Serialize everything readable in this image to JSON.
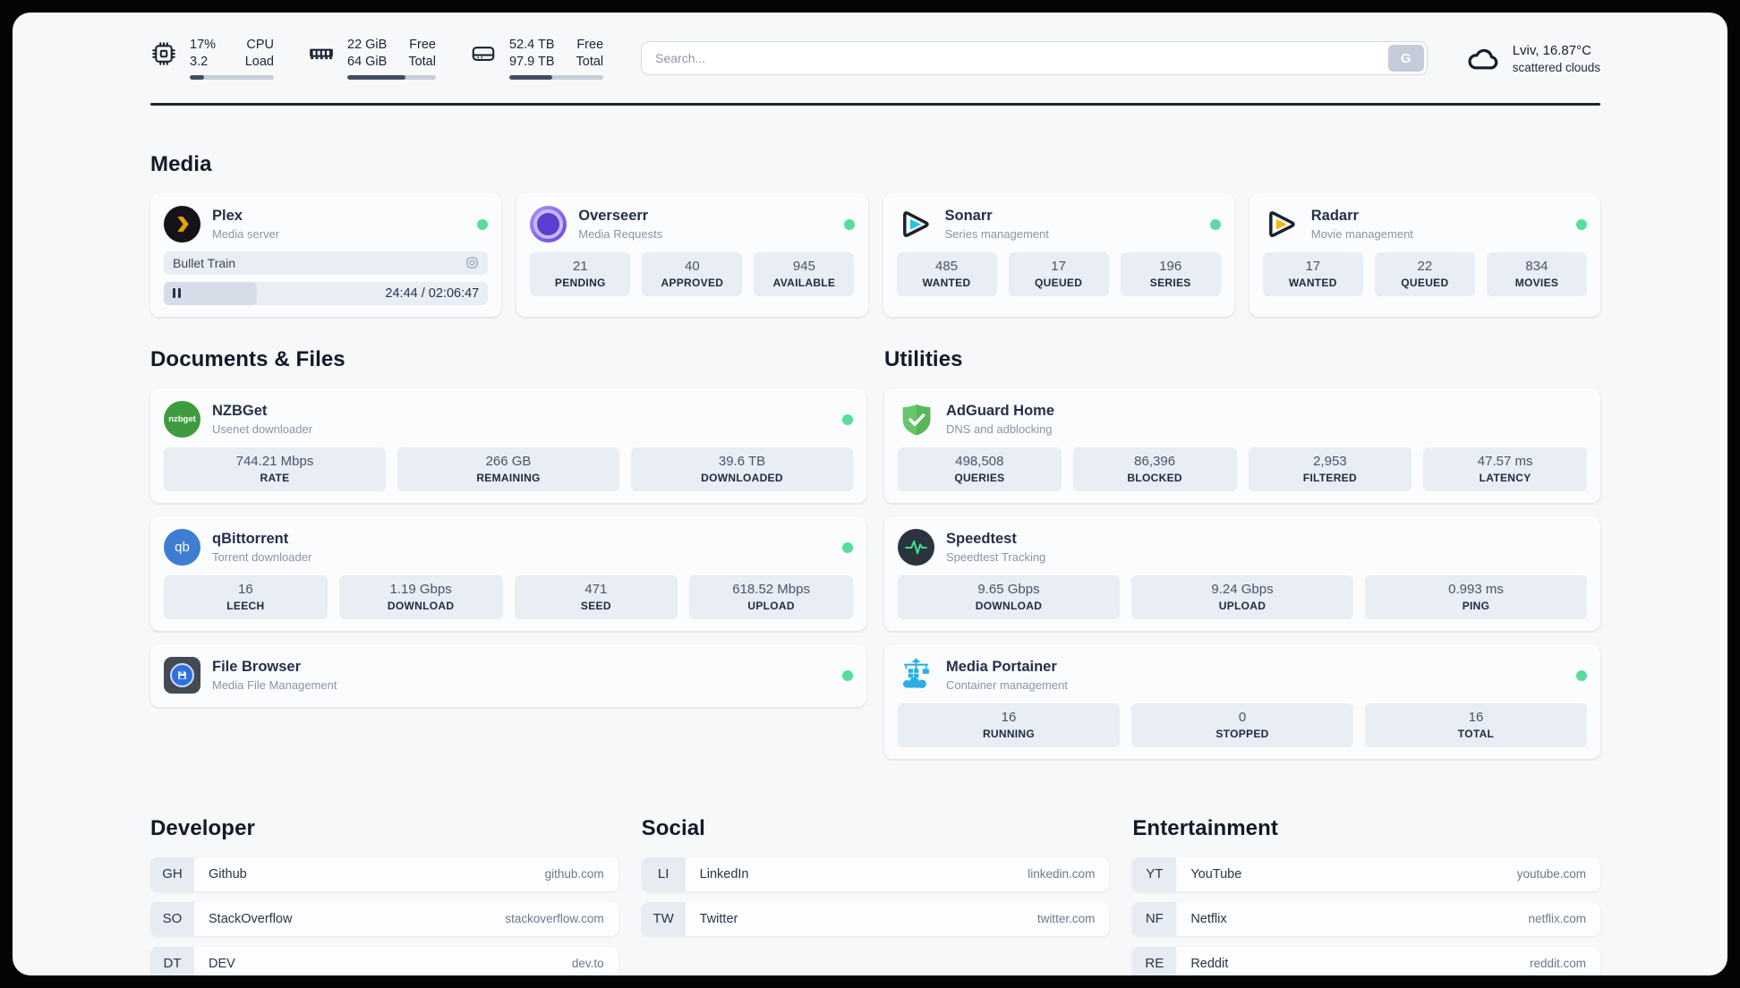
{
  "colors": {
    "online_dot": "#57de9c",
    "accent_dark": "#1d2530",
    "stat_box": "#e9edf4"
  },
  "header": {
    "hardware": [
      {
        "icon": "cpu-icon",
        "value_top": "17%",
        "value_bottom": "3.2",
        "label_top": "CPU",
        "label_bottom": "Load",
        "progress_pct": 17
      },
      {
        "icon": "ram-icon",
        "value_top": "22 GiB",
        "value_bottom": "64 GiB",
        "label_top": "Free",
        "label_bottom": "Total",
        "progress_pct": 66
      },
      {
        "icon": "disk-icon",
        "value_top": "52.4 TB",
        "value_bottom": "97.9 TB",
        "label_top": "Free",
        "label_bottom": "Total",
        "progress_pct": 46
      }
    ],
    "search": {
      "placeholder": "Search...",
      "button_label": "G"
    },
    "weather": {
      "icon": "cloud-icon",
      "location": "Lviv, 16.87°C",
      "condition": "scattered clouds"
    }
  },
  "sections": {
    "media": {
      "title": "Media",
      "apps": [
        {
          "icon": "plex-icon",
          "name": "Plex",
          "desc": "Media server",
          "online": true,
          "player": {
            "title": "Bullet Train",
            "time": "24:44 / 02:06:47"
          }
        },
        {
          "icon": "overseerr-icon",
          "name": "Overseerr",
          "desc": "Media Requests",
          "online": true,
          "stats": [
            {
              "value": "21",
              "label": "PENDING"
            },
            {
              "value": "40",
              "label": "APPROVED"
            },
            {
              "value": "945",
              "label": "AVAILABLE"
            }
          ]
        },
        {
          "icon": "sonarr-icon",
          "name": "Sonarr",
          "desc": "Series management",
          "online": true,
          "stats": [
            {
              "value": "485",
              "label": "WANTED"
            },
            {
              "value": "17",
              "label": "QUEUED"
            },
            {
              "value": "196",
              "label": "SERIES"
            }
          ]
        },
        {
          "icon": "radarr-icon",
          "name": "Radarr",
          "desc": "Movie management",
          "online": true,
          "stats": [
            {
              "value": "17",
              "label": "WANTED"
            },
            {
              "value": "22",
              "label": "QUEUED"
            },
            {
              "value": "834",
              "label": "MOVIES"
            }
          ]
        }
      ]
    },
    "documents": {
      "title": "Documents & Files",
      "apps": [
        {
          "icon": "nzbget-icon",
          "abbr": "nzbget",
          "name": "NZBGet",
          "desc": "Usenet downloader",
          "online": true,
          "stats": [
            {
              "value": "744.21 Mbps",
              "label": "RATE"
            },
            {
              "value": "266 GB",
              "label": "REMAINING"
            },
            {
              "value": "39.6 TB",
              "label": "DOWNLOADED"
            }
          ]
        },
        {
          "icon": "qbittorrent-icon",
          "abbr": "qb",
          "name": "qBittorrent",
          "desc": "Torrent downloader",
          "online": true,
          "stats": [
            {
              "value": "16",
              "label": "LEECH"
            },
            {
              "value": "1.19 Gbps",
              "label": "DOWNLOAD"
            },
            {
              "value": "471",
              "label": "SEED"
            },
            {
              "value": "618.52 Mbps",
              "label": "UPLOAD"
            }
          ]
        },
        {
          "icon": "filebrowser-icon",
          "name": "File Browser",
          "desc": "Media File Management",
          "online": true,
          "stats": []
        }
      ]
    },
    "utilities": {
      "title": "Utilities",
      "apps": [
        {
          "icon": "adguard-icon",
          "name": "AdGuard Home",
          "desc": "DNS and adblocking",
          "online": false,
          "stats": [
            {
              "value": "498,508",
              "label": "QUERIES"
            },
            {
              "value": "86,396",
              "label": "BLOCKED"
            },
            {
              "value": "2,953",
              "label": "FILTERED"
            },
            {
              "value": "47.57 ms",
              "label": "LATENCY"
            }
          ]
        },
        {
          "icon": "speedtest-icon",
          "name": "Speedtest",
          "desc": "Speedtest Tracking",
          "online": false,
          "stats": [
            {
              "value": "9.65 Gbps",
              "label": "DOWNLOAD"
            },
            {
              "value": "9.24 Gbps",
              "label": "UPLOAD"
            },
            {
              "value": "0.993 ms",
              "label": "PING"
            }
          ]
        },
        {
          "icon": "portainer-icon",
          "name": "Media Portainer",
          "desc": "Container management",
          "online": true,
          "stats": [
            {
              "value": "16",
              "label": "RUNNING"
            },
            {
              "value": "0",
              "label": "STOPPED"
            },
            {
              "value": "16",
              "label": "TOTAL"
            }
          ]
        }
      ]
    },
    "links": [
      {
        "title": "Developer",
        "items": [
          {
            "abbr": "GH",
            "name": "Github",
            "url": "github.com"
          },
          {
            "abbr": "SO",
            "name": "StackOverflow",
            "url": "stackoverflow.com"
          },
          {
            "abbr": "DT",
            "name": "DEV",
            "url": "dev.to"
          }
        ]
      },
      {
        "title": "Social",
        "items": [
          {
            "abbr": "LI",
            "name": "LinkedIn",
            "url": "linkedin.com"
          },
          {
            "abbr": "TW",
            "name": "Twitter",
            "url": "twitter.com"
          }
        ]
      },
      {
        "title": "Entertainment",
        "items": [
          {
            "abbr": "YT",
            "name": "YouTube",
            "url": "youtube.com"
          },
          {
            "abbr": "NF",
            "name": "Netflix",
            "url": "netflix.com"
          },
          {
            "abbr": "RE",
            "name": "Reddit",
            "url": "reddit.com"
          }
        ]
      }
    ]
  }
}
